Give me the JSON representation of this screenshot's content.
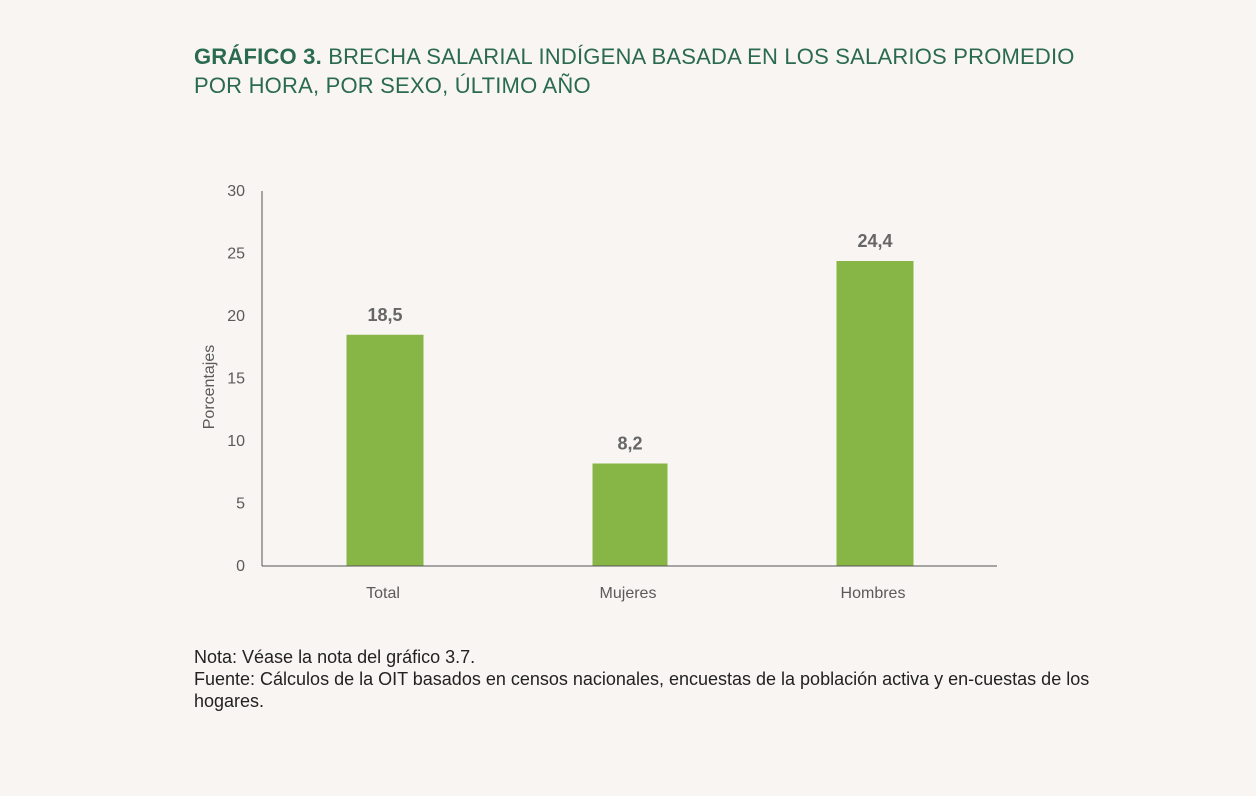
{
  "title": {
    "number": "GRÁFICO 3.",
    "text": "BRECHA SALARIAL INDÍGENA BASADA EN LOS SALARIOS PROMEDIO POR HORA, POR SEXO, ÚLTIMO AÑO"
  },
  "colors": {
    "bar": "#87b546",
    "title": "#2a6a50",
    "axis": "#555555"
  },
  "chart_data": {
    "type": "bar",
    "title": "BRECHA SALARIAL INDÍGENA BASADA EN LOS SALARIOS PROMEDIO POR HORA, POR SEXO, ÚLTIMO AÑO",
    "categories": [
      "Total",
      "Mujeres",
      "Hombres"
    ],
    "values": [
      18.5,
      8.2,
      24.4
    ],
    "value_labels": [
      "18,5",
      "8,2",
      "24,4"
    ],
    "xlabel": "",
    "ylabel": "Porcentajes",
    "ylim": [
      0,
      30
    ],
    "yticks": [
      0,
      5,
      10,
      15,
      20,
      25,
      30
    ],
    "grid": false
  },
  "footer": {
    "note": "Nota: Véase la nota del gráfico 3.7.",
    "source": "Fuente: Cálculos de la OIT basados en censos nacionales, encuestas de la población activa y en-cuestas de los hogares."
  }
}
